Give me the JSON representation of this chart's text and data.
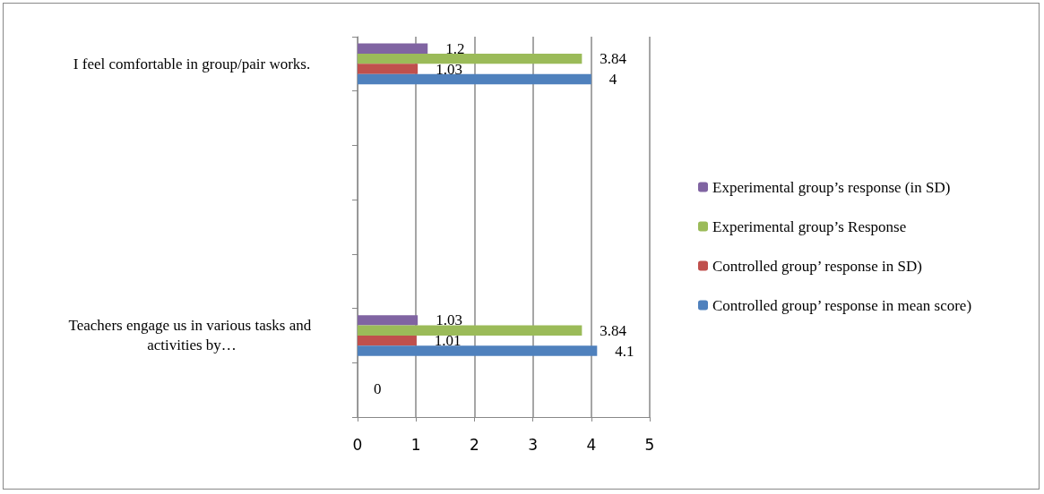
{
  "chart_data": {
    "type": "bar",
    "orientation": "horizontal",
    "categories": [
      "I feel comfortable in group/pair works.",
      null,
      null,
      null,
      null,
      "Teachers engage us in various tasks and activities by…",
      null
    ],
    "series": [
      {
        "name": "Experimental group’s response (in SD)",
        "color": "#8064a2",
        "values": [
          1.2,
          null,
          null,
          null,
          null,
          1.03,
          null
        ]
      },
      {
        "name": "Experimental group’s Response",
        "color": "#9bbb59",
        "values": [
          3.84,
          null,
          null,
          null,
          null,
          3.84,
          null
        ]
      },
      {
        "name": "Controlled group’ response in SD)",
        "color": "#c0504d",
        "values": [
          1.03,
          null,
          null,
          null,
          null,
          1.01,
          null
        ]
      },
      {
        "name": "Controlled group’ response in mean score)",
        "color": "#4f81bd",
        "values": [
          4,
          null,
          null,
          null,
          null,
          4.1,
          null
        ]
      }
    ],
    "xlim": [
      0,
      5
    ],
    "xticks": [
      0,
      1,
      2,
      3,
      4,
      5
    ],
    "annotations": [
      "0"
    ],
    "grid": "x",
    "legend": "right",
    "data_labels": true
  }
}
